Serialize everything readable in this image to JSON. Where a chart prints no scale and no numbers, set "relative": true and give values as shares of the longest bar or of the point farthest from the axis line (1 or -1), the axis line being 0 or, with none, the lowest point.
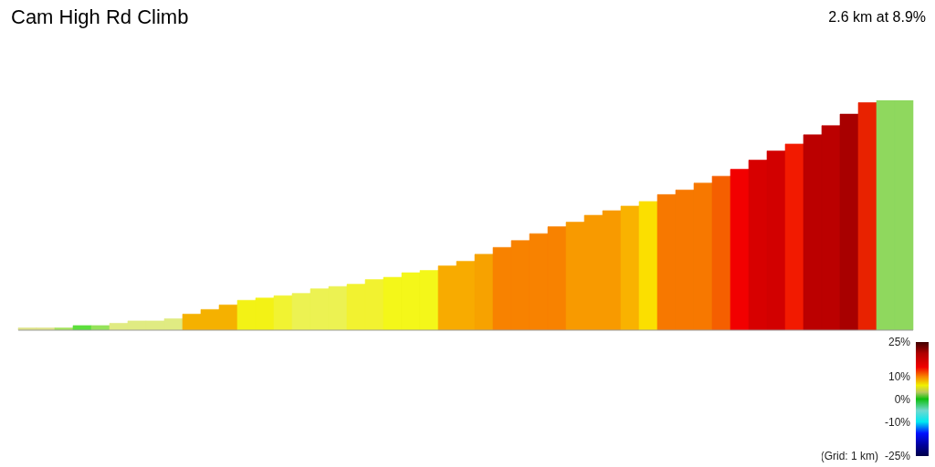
{
  "chart_data": {
    "type": "bar",
    "title": "Cam High Rd Climb",
    "subtitle": "2.6 km at 8.9%",
    "annotations": [
      "(Grid: 1 km)"
    ],
    "relative": true,
    "categories": [
      null,
      null,
      null,
      null,
      null,
      null,
      null,
      null,
      null,
      null,
      null,
      null,
      null,
      null,
      null,
      null,
      null,
      null,
      null,
      null,
      null,
      null,
      null,
      null,
      null,
      null,
      null,
      null,
      null,
      null,
      null,
      null,
      null,
      null,
      null,
      null,
      null,
      null,
      null,
      null,
      null,
      null,
      null,
      null,
      null,
      null,
      null,
      null,
      null
    ],
    "values": [
      0.01,
      0.01,
      0.01,
      0.02,
      0.02,
      0.03,
      0.04,
      0.04,
      0.05,
      0.07,
      0.09,
      0.11,
      0.13,
      0.14,
      0.15,
      0.16,
      0.18,
      0.19,
      0.2,
      0.22,
      0.23,
      0.25,
      0.26,
      0.28,
      0.3,
      0.33,
      0.36,
      0.39,
      0.42,
      0.45,
      0.47,
      0.5,
      0.52,
      0.54,
      0.56,
      0.59,
      0.61,
      0.64,
      0.67,
      0.7,
      0.74,
      0.78,
      0.81,
      0.85,
      0.89,
      0.94,
      0.99,
      1.0,
      1.0
    ],
    "colors": [
      "#dde28a",
      "#dde28a",
      "#a6e35e",
      "#5cdf3c",
      "#95e35a",
      "#e0eb82",
      "#e0eb82",
      "#e0eb82",
      "#e0eb82",
      "#f5b100",
      "#f5b100",
      "#f5b100",
      "#f3f215",
      "#f3f215",
      "#f1f332",
      "#ecf252",
      "#ecf252",
      "#ecf252",
      "#f2f230",
      "#f2f230",
      "#f4f719",
      "#f4f719",
      "#f4f719",
      "#f8ab00",
      "#f8ab00",
      "#f7a200",
      "#f88200",
      "#f88200",
      "#f88200",
      "#f88200",
      "#f89a00",
      "#f89a00",
      "#f89a00",
      "#f9b200",
      "#fbdf00",
      "#f77800",
      "#f77800",
      "#f77800",
      "#f55f00",
      "#f20000",
      "#d70000",
      "#d20000",
      "#f21a00",
      "#bb0000",
      "#bb0000",
      "#a80000",
      "#e82200",
      "#8fd85e",
      "#8fd85e"
    ],
    "clim": [
      -25,
      25
    ],
    "cticks": [
      {
        "value": 25,
        "label": "25%"
      },
      {
        "value": 10,
        "label": "10%"
      },
      {
        "value": 0,
        "label": "0%"
      },
      {
        "value": -10,
        "label": "-10%"
      },
      {
        "value": -25,
        "label": "-25%"
      }
    ]
  }
}
